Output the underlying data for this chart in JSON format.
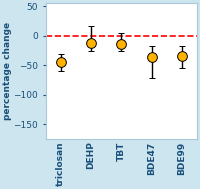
{
  "categories": [
    "triclosan",
    "DEHP",
    "TBT",
    "BDE47",
    "BDE99"
  ],
  "values": [
    -45,
    -12,
    -15,
    -37,
    -35
  ],
  "yerr_low": [
    15,
    15,
    12,
    35,
    20
  ],
  "yerr_high": [
    13,
    28,
    20,
    20,
    18
  ],
  "marker_color": "#FFB300",
  "marker_edge_color": "#000000",
  "marker_size": 7,
  "line_color": "red",
  "line_style": "--",
  "ylabel": "percentage change",
  "ylim": [
    -175,
    55
  ],
  "yticks": [
    50,
    0,
    -50,
    -100,
    -150
  ],
  "bg_color": "#cce5ef",
  "plot_bg_color": "#ffffff",
  "spine_color": "#aaaaaa",
  "tick_color": "#1a4f7a",
  "label_fontsize": 6.5,
  "ylabel_fontsize": 6.5
}
